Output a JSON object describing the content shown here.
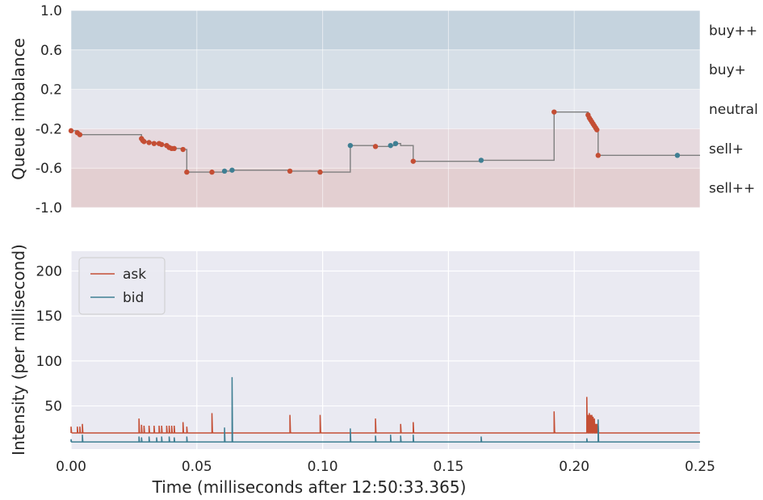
{
  "chart_data": [
    {
      "type": "line",
      "panel": "queue-imbalance",
      "ylabel": "Queue imbalance",
      "ylim": [
        -1.0,
        1.0
      ],
      "xlim": [
        0.0,
        0.25
      ],
      "yticks": [
        "1.0",
        "0.6",
        "0.2",
        "-0.2",
        "-0.6",
        "-1.0"
      ],
      "ytick_values": [
        1.0,
        0.6,
        0.2,
        -0.2,
        -0.6,
        -1.0
      ],
      "bands": [
        {
          "label": "buy++",
          "from": 0.6,
          "to": 1.0,
          "color": "#c5d3de"
        },
        {
          "label": "buy+",
          "from": 0.2,
          "to": 0.6,
          "color": "#d6dfe7"
        },
        {
          "label": "neutral",
          "from": -0.2,
          "to": 0.2,
          "color": "#e5e7ee"
        },
        {
          "label": "sell+",
          "from": -0.6,
          "to": -0.2,
          "color": "#e6d9de"
        },
        {
          "label": "sell++",
          "from": -1.0,
          "to": -0.6,
          "color": "#e3cfd1"
        }
      ],
      "line_color": "#7f7f7f",
      "step_points": [
        [
          0.0,
          -0.22
        ],
        [
          0.0025,
          -0.24
        ],
        [
          0.0035,
          -0.26
        ],
        [
          0.0045,
          -0.26
        ],
        [
          0.027,
          -0.26
        ],
        [
          0.028,
          -0.3
        ],
        [
          0.0285,
          -0.32
        ],
        [
          0.029,
          -0.33
        ],
        [
          0.031,
          -0.34
        ],
        [
          0.033,
          -0.35
        ],
        [
          0.035,
          -0.35
        ],
        [
          0.036,
          -0.36
        ],
        [
          0.038,
          -0.37
        ],
        [
          0.039,
          -0.39
        ],
        [
          0.04,
          -0.4
        ],
        [
          0.041,
          -0.4
        ],
        [
          0.0445,
          -0.41
        ],
        [
          0.046,
          -0.64
        ],
        [
          0.056,
          -0.64
        ],
        [
          0.061,
          -0.63
        ],
        [
          0.064,
          -0.62
        ],
        [
          0.087,
          -0.63
        ],
        [
          0.099,
          -0.64
        ],
        [
          0.111,
          -0.64
        ],
        [
          0.111,
          -0.37
        ],
        [
          0.121,
          -0.38
        ],
        [
          0.127,
          -0.37
        ],
        [
          0.129,
          -0.35
        ],
        [
          0.131,
          -0.37
        ],
        [
          0.136,
          -0.37
        ],
        [
          0.136,
          -0.53
        ],
        [
          0.163,
          -0.52
        ],
        [
          0.192,
          -0.52
        ],
        [
          0.192,
          -0.03
        ],
        [
          0.205,
          -0.03
        ],
        [
          0.2055,
          -0.06
        ],
        [
          0.206,
          -0.09
        ],
        [
          0.2065,
          -0.11
        ],
        [
          0.207,
          -0.13
        ],
        [
          0.2075,
          -0.15
        ],
        [
          0.208,
          -0.17
        ],
        [
          0.2085,
          -0.19
        ],
        [
          0.209,
          -0.21
        ],
        [
          0.2095,
          -0.47
        ],
        [
          0.241,
          -0.47
        ],
        [
          0.25,
          -0.47
        ]
      ],
      "events": {
        "ask_color": "#c44e34",
        "bid_color": "#3f7f93",
        "ask": [
          [
            0.0,
            -0.22
          ],
          [
            0.0025,
            -0.24
          ],
          [
            0.0035,
            -0.26
          ],
          [
            0.028,
            -0.3
          ],
          [
            0.0285,
            -0.32
          ],
          [
            0.029,
            -0.33
          ],
          [
            0.031,
            -0.34
          ],
          [
            0.033,
            -0.35
          ],
          [
            0.035,
            -0.35
          ],
          [
            0.036,
            -0.36
          ],
          [
            0.038,
            -0.37
          ],
          [
            0.039,
            -0.39
          ],
          [
            0.04,
            -0.4
          ],
          [
            0.041,
            -0.4
          ],
          [
            0.0445,
            -0.41
          ],
          [
            0.046,
            -0.64
          ],
          [
            0.056,
            -0.64
          ],
          [
            0.087,
            -0.63
          ],
          [
            0.099,
            -0.64
          ],
          [
            0.121,
            -0.38
          ],
          [
            0.136,
            -0.53
          ],
          [
            0.192,
            -0.03
          ],
          [
            0.2055,
            -0.06
          ],
          [
            0.206,
            -0.09
          ],
          [
            0.2065,
            -0.11
          ],
          [
            0.207,
            -0.13
          ],
          [
            0.2075,
            -0.15
          ],
          [
            0.208,
            -0.17
          ],
          [
            0.2085,
            -0.19
          ],
          [
            0.209,
            -0.21
          ],
          [
            0.2095,
            -0.47
          ]
        ],
        "bid": [
          [
            0.061,
            -0.63
          ],
          [
            0.064,
            -0.62
          ],
          [
            0.111,
            -0.37
          ],
          [
            0.127,
            -0.37
          ],
          [
            0.129,
            -0.35
          ],
          [
            0.163,
            -0.52
          ],
          [
            0.241,
            -0.47
          ]
        ]
      }
    },
    {
      "type": "line",
      "panel": "intensity",
      "ylabel": "Intensity (per millisecond)",
      "xlabel": "Time (milliseconds after 12:50:33.365)",
      "xlim": [
        0.0,
        0.25
      ],
      "ylim": [
        2,
        222
      ],
      "xticks": [
        "0.00",
        "0.05",
        "0.10",
        "0.15",
        "0.20",
        "0.25"
      ],
      "xtick_values": [
        0.0,
        0.05,
        0.1,
        0.15,
        0.2,
        0.25
      ],
      "yticks": [
        "50",
        "100",
        "150",
        "200"
      ],
      "ytick_values": [
        50,
        100,
        150,
        200
      ],
      "legend": {
        "position": "upper-left",
        "entries": [
          "ask",
          "bid"
        ]
      },
      "series": [
        {
          "name": "ask",
          "color": "#c44e34",
          "baseline": 20,
          "decay": 14,
          "jumps": [
            [
              0.0,
              7
            ],
            [
              0.0025,
              7
            ],
            [
              0.0035,
              7
            ],
            [
              0.0045,
              10
            ],
            [
              0.027,
              16
            ],
            [
              0.028,
              9
            ],
            [
              0.029,
              8
            ],
            [
              0.031,
              8
            ],
            [
              0.033,
              8
            ],
            [
              0.035,
              8
            ],
            [
              0.036,
              8
            ],
            [
              0.038,
              8
            ],
            [
              0.039,
              8
            ],
            [
              0.04,
              8
            ],
            [
              0.041,
              8
            ],
            [
              0.0445,
              12
            ],
            [
              0.046,
              7
            ],
            [
              0.056,
              22
            ],
            [
              0.087,
              20
            ],
            [
              0.099,
              20
            ],
            [
              0.121,
              16
            ],
            [
              0.131,
              10
            ],
            [
              0.136,
              12
            ],
            [
              0.192,
              24
            ],
            [
              0.205,
              40
            ],
            [
              0.2055,
              20
            ],
            [
              0.206,
              22
            ],
            [
              0.2065,
              20
            ],
            [
              0.207,
              20
            ],
            [
              0.2075,
              18
            ],
            [
              0.208,
              16
            ],
            [
              0.2085,
              10
            ],
            [
              0.209,
              10
            ],
            [
              0.2095,
              8
            ]
          ]
        },
        {
          "name": "bid",
          "color": "#3f7f93",
          "baseline": 10,
          "decay": 22,
          "jumps": [
            [
              0.0,
              3
            ],
            [
              0.0045,
              8
            ],
            [
              0.027,
              6
            ],
            [
              0.028,
              5
            ],
            [
              0.031,
              6
            ],
            [
              0.034,
              5
            ],
            [
              0.036,
              6
            ],
            [
              0.039,
              6
            ],
            [
              0.041,
              5
            ],
            [
              0.046,
              6
            ],
            [
              0.061,
              16
            ],
            [
              0.064,
              72
            ],
            [
              0.111,
              15
            ],
            [
              0.121,
              7
            ],
            [
              0.127,
              8
            ],
            [
              0.131,
              7
            ],
            [
              0.136,
              8
            ],
            [
              0.163,
              6
            ],
            [
              0.205,
              4
            ],
            [
              0.2095,
              25
            ]
          ]
        }
      ]
    }
  ]
}
